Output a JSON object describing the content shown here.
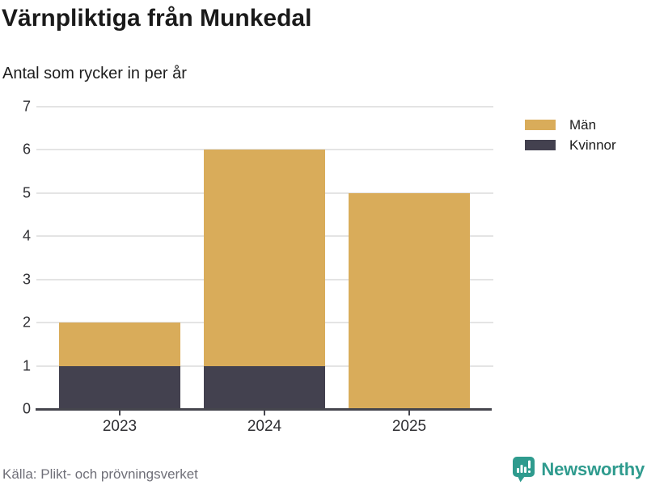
{
  "title": "Värnpliktiga från Munkedal",
  "subtitle": "Antal som rycker in per år",
  "source": "Källa: Plikt- och prövningsverket",
  "brand": {
    "name": "Newsworthy",
    "color": "#2f9b8e",
    "icon": "bar-chart-speech-bubble-icon"
  },
  "colors": {
    "men": "#d9ac5a",
    "women": "#43414f",
    "grid": "#e4e4e4",
    "axis": "#45454d",
    "title_text": "#1a1a1a",
    "label_text": "#2f2f33",
    "source_text": "#6f6f78"
  },
  "legend": [
    {
      "label": "Män",
      "color": "#d9ac5a"
    },
    {
      "label": "Kvinnor",
      "color": "#43414f"
    }
  ],
  "chart_data": {
    "type": "bar",
    "stacked": true,
    "title": "Värnpliktiga från Munkedal",
    "subtitle": "Antal som rycker in per år",
    "categories": [
      "2023",
      "2024",
      "2025"
    ],
    "series": [
      {
        "name": "Kvinnor",
        "color": "#43414f",
        "values": [
          1,
          1,
          0
        ]
      },
      {
        "name": "Män",
        "color": "#d9ac5a",
        "values": [
          1,
          5,
          5
        ]
      }
    ],
    "totals": [
      2,
      6,
      5
    ],
    "xlabel": "",
    "ylabel": "",
    "ylim": [
      0,
      7
    ],
    "yticks": [
      0,
      1,
      2,
      3,
      4,
      5,
      6,
      7
    ],
    "grid": true,
    "legend_position": "top-right"
  }
}
